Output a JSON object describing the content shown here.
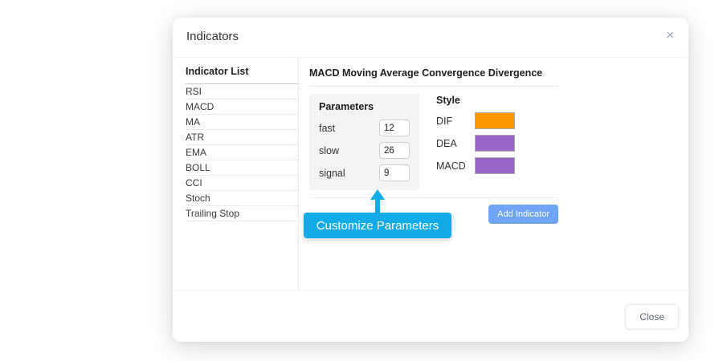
{
  "modal": {
    "title": "Indicators",
    "close_icon": "×",
    "sidebar": {
      "header": "Indicator List",
      "items": [
        "RSI",
        "MACD",
        "MA",
        "ATR",
        "EMA",
        "BOLL",
        "CCI",
        "Stoch",
        "Trailing Stop"
      ]
    },
    "main": {
      "heading": "MACD Moving Average Convergence Divergence",
      "parameters": {
        "title": "Parameters",
        "fields": [
          {
            "label": "fast",
            "value": "12"
          },
          {
            "label": "slow",
            "value": "26"
          },
          {
            "label": "signal",
            "value": "9"
          }
        ]
      },
      "style": {
        "title": "Style",
        "rows": [
          {
            "label": "DIF",
            "color": "#fb9802"
          },
          {
            "label": "DEA",
            "color": "#9a64c6"
          },
          {
            "label": "MACD",
            "color": "#9a64c6"
          }
        ]
      },
      "add_button": "Add Indicator"
    },
    "callout": {
      "label": "Customize Parameters",
      "color": "#12abe8"
    },
    "footer": {
      "close_button": "Close"
    }
  }
}
